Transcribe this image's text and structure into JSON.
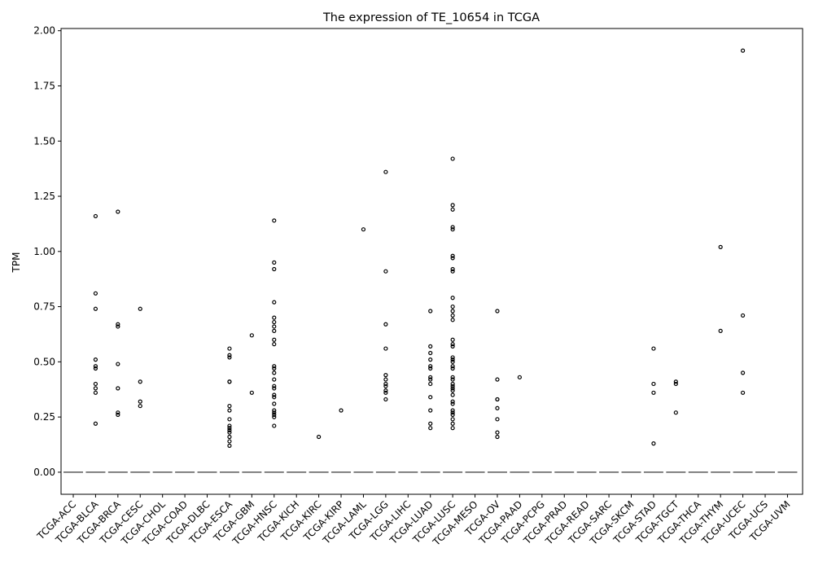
{
  "chart_data": {
    "type": "box",
    "title": "The expression of TE_10654 in TCGA",
    "xlabel": "",
    "ylabel": "TPM",
    "ylim": [
      -0.1,
      2.01
    ],
    "yticks": [
      "0.00",
      "0.25",
      "0.50",
      "0.75",
      "1.00",
      "1.25",
      "1.50",
      "1.75",
      "2.00"
    ],
    "categories": [
      "TCGA-ACC",
      "TCGA-BLCA",
      "TCGA-BRCA",
      "TCGA-CESC",
      "TCGA-CHOL",
      "TCGA-COAD",
      "TCGA-DLBC",
      "TCGA-ESCA",
      "TCGA-GBM",
      "TCGA-HNSC",
      "TCGA-KICH",
      "TCGA-KIRC",
      "TCGA-KIRP",
      "TCGA-LAML",
      "TCGA-LGG",
      "TCGA-LIHC",
      "TCGA-LUAD",
      "TCGA-LUSC",
      "TCGA-MESO",
      "TCGA-OV",
      "TCGA-PAAD",
      "TCGA-PCPG",
      "TCGA-PRAD",
      "TCGA-READ",
      "TCGA-SARC",
      "TCGA-SKCM",
      "TCGA-STAD",
      "TCGA-TGCT",
      "TCGA-THCA",
      "TCGA-THYM",
      "TCGA-UCEC",
      "TCGA-UCS",
      "TCGA-UVM"
    ],
    "median": [
      0,
      0,
      0,
      0,
      0,
      0,
      0,
      0,
      0,
      0,
      0,
      0,
      0,
      0,
      0,
      0,
      0,
      0,
      0,
      0,
      0,
      0,
      0,
      0,
      0,
      0,
      0,
      0,
      0,
      0,
      0,
      0,
      0
    ],
    "outliers": [
      [],
      [
        1.16,
        0.81,
        0.74,
        0.51,
        0.48,
        0.47,
        0.4,
        0.38,
        0.36,
        0.22
      ],
      [
        1.18,
        0.67,
        0.66,
        0.49,
        0.38,
        0.27,
        0.26
      ],
      [
        0.74,
        0.41,
        0.32,
        0.3
      ],
      [],
      [],
      [],
      [
        0.56,
        0.53,
        0.52,
        0.41,
        0.41,
        0.3,
        0.28,
        0.24,
        0.21,
        0.2,
        0.19,
        0.18,
        0.16,
        0.14,
        0.12
      ],
      [
        0.62,
        0.36
      ],
      [
        1.14,
        0.95,
        0.92,
        0.77,
        0.7,
        0.68,
        0.66,
        0.64,
        0.6,
        0.58,
        0.48,
        0.47,
        0.45,
        0.42,
        0.39,
        0.38,
        0.35,
        0.34,
        0.31,
        0.28,
        0.27,
        0.26,
        0.25,
        0.21
      ],
      [],
      [
        0.16
      ],
      [
        0.28
      ],
      [
        1.1
      ],
      [
        1.36,
        0.91,
        0.67,
        0.56,
        0.44,
        0.42,
        0.4,
        0.39,
        0.37,
        0.36,
        0.33
      ],
      [],
      [
        0.73,
        0.57,
        0.54,
        0.51,
        0.48,
        0.47,
        0.43,
        0.42,
        0.4,
        0.34,
        0.28,
        0.22,
        0.2
      ],
      [
        1.42,
        1.21,
        1.19,
        1.11,
        1.1,
        0.98,
        0.97,
        0.92,
        0.91,
        0.79,
        0.75,
        0.73,
        0.71,
        0.69,
        0.6,
        0.58,
        0.57,
        0.52,
        0.51,
        0.5,
        0.48,
        0.47,
        0.43,
        0.42,
        0.4,
        0.39,
        0.38,
        0.37,
        0.35,
        0.32,
        0.31,
        0.28,
        0.27,
        0.26,
        0.24,
        0.22,
        0.2
      ],
      [],
      [
        0.73,
        0.42,
        0.33,
        0.33,
        0.29,
        0.24,
        0.18,
        0.16
      ],
      [
        0.43
      ],
      [],
      [],
      [],
      [],
      [],
      [
        0.56,
        0.4,
        0.36,
        0.13
      ],
      [
        0.41,
        0.4,
        0.27
      ],
      [],
      [
        1.02,
        0.64
      ],
      [
        1.91,
        0.71,
        0.45,
        0.36
      ],
      [],
      []
    ],
    "grid": false,
    "median_color": "#5a5a5a",
    "marker_color": "#000000"
  }
}
